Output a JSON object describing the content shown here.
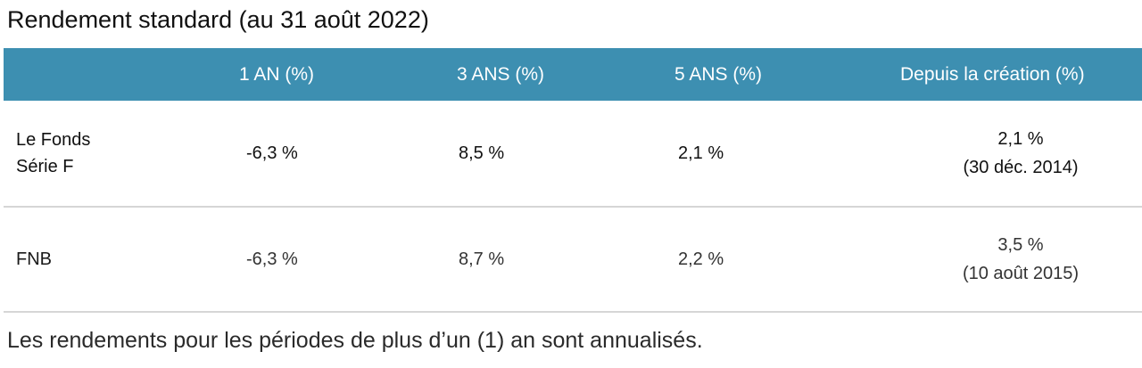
{
  "title": "Rendement standard (au 31 août 2022)",
  "table": {
    "headers": [
      "",
      "1 AN (%)",
      "3 ANS (%)",
      "5 ANS (%)",
      "Depuis la création (%)"
    ],
    "rows": [
      {
        "label": "Le Fonds Série F",
        "one_year": "-6,3 %",
        "three_years": "8,5 %",
        "five_years": "2,1 %",
        "since_inception_value": "2,1 %",
        "since_inception_date": "(30 déc. 2014)"
      },
      {
        "label": "FNB",
        "one_year": "-6,3 %",
        "three_years": "8,7 %",
        "five_years": "2,2 %",
        "since_inception_value": "3,5 %",
        "since_inception_date": "(10 août 2015)"
      }
    ]
  },
  "footnote": "Les rendements pour les périodes de plus d’un (1) an sont annualisés.",
  "colors": {
    "header_background": "#3d8fb1",
    "header_text": "#ffffff",
    "row_divider": "#d6d6d6"
  }
}
